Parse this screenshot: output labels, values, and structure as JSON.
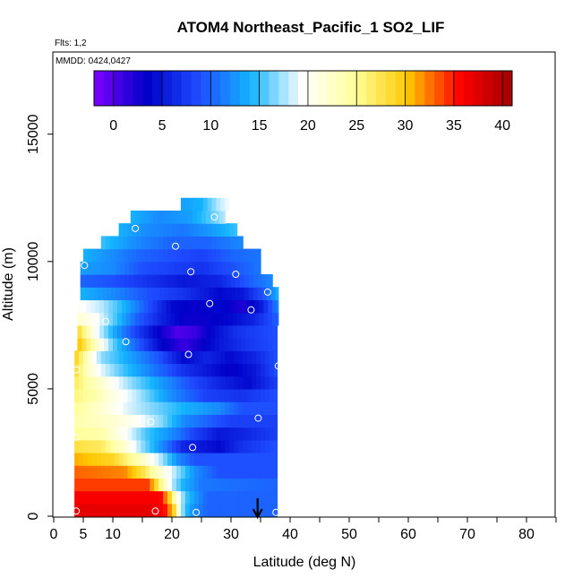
{
  "chart_data": {
    "type": "heatmap",
    "title": "ATOM4 Northeast_Pacific_1 SO2_LIF",
    "flights_label": "Flts: 1,2",
    "dates_label": "MMDD: 0424,0427",
    "xlabel": "Latitude (deg N)",
    "ylabel": "Altitude (m)",
    "xlim": [
      0,
      85
    ],
    "ylim": [
      0,
      17500
    ],
    "x_ticks": [
      "0",
      "5",
      "10",
      "20",
      "30",
      "40",
      "50",
      "60",
      "70",
      "80"
    ],
    "y_ticks": [
      "0",
      "5000",
      "10000",
      "15000"
    ],
    "colorbar": {
      "min": -2,
      "max": 41,
      "ticks": [
        "0",
        "5",
        "10",
        "15",
        "20",
        "25",
        "30",
        "35",
        "40"
      ],
      "colors": [
        "#7f00ff",
        "#0000c8",
        "#1e4bff",
        "#14b4ff",
        "#ffffff",
        "#ffff9b",
        "#ffc800",
        "#ff0000",
        "#a00000"
      ]
    },
    "arrow_latitude": 34.5,
    "observations": [
      {
        "lat": 3.8,
        "alt": 200
      },
      {
        "lat": 17.2,
        "alt": 200
      },
      {
        "lat": 24.1,
        "alt": 150
      },
      {
        "lat": 37.6,
        "alt": 150
      },
      {
        "lat": 3.8,
        "alt": 3100
      },
      {
        "lat": 11.2,
        "alt": 3400
      },
      {
        "lat": 16.4,
        "alt": 3700
      },
      {
        "lat": 23.5,
        "alt": 2700
      },
      {
        "lat": 34.6,
        "alt": 3850
      },
      {
        "lat": 3.8,
        "alt": 5750
      },
      {
        "lat": 38.0,
        "alt": 5900
      },
      {
        "lat": 22.8,
        "alt": 6350
      },
      {
        "lat": 12.2,
        "alt": 6850
      },
      {
        "lat": 8.8,
        "alt": 7650
      },
      {
        "lat": 33.4,
        "alt": 8100
      },
      {
        "lat": 26.4,
        "alt": 8350
      },
      {
        "lat": 36.2,
        "alt": 8800
      },
      {
        "lat": 5.2,
        "alt": 9850
      },
      {
        "lat": 23.2,
        "alt": 9600
      },
      {
        "lat": 30.8,
        "alt": 9500
      },
      {
        "lat": 20.6,
        "alt": 10600
      },
      {
        "lat": 13.8,
        "alt": 11300
      },
      {
        "lat": 27.2,
        "alt": 11750
      }
    ],
    "grid_lat_step": 0.75,
    "grid_alt_step": 500,
    "profile": [
      {
        "alt": 0,
        "lat_min": 3.5,
        "lat_max": 37.8,
        "values": [
          [
            3.5,
            37
          ],
          [
            17,
            37
          ],
          [
            19,
            35
          ],
          [
            20.5,
            28
          ],
          [
            21.5,
            18
          ],
          [
            23,
            13
          ],
          [
            26,
            10
          ],
          [
            37.8,
            10
          ]
        ]
      },
      {
        "alt": 500,
        "lat_min": 3.5,
        "lat_max": 37.8,
        "values": [
          [
            3.5,
            36
          ],
          [
            18,
            36
          ],
          [
            19.5,
            30
          ],
          [
            21,
            20
          ],
          [
            22.5,
            15
          ],
          [
            26,
            10
          ],
          [
            37.8,
            10
          ]
        ]
      },
      {
        "alt": 1000,
        "lat_min": 3.5,
        "lat_max": 37.8,
        "values": [
          [
            3.5,
            34
          ],
          [
            16,
            34
          ],
          [
            18,
            26
          ],
          [
            20,
            18
          ],
          [
            22,
            14
          ],
          [
            25,
            11
          ],
          [
            37.8,
            10
          ]
        ]
      },
      {
        "alt": 1500,
        "lat_min": 3.5,
        "lat_max": 37.8,
        "values": [
          [
            3.5,
            33
          ],
          [
            12,
            32
          ],
          [
            15,
            28
          ],
          [
            18,
            22
          ],
          [
            21,
            17
          ],
          [
            24,
            12
          ],
          [
            28,
            9
          ],
          [
            37.8,
            9
          ]
        ]
      },
      {
        "alt": 2000,
        "lat_min": 3.5,
        "lat_max": 37.8,
        "values": [
          [
            3.5,
            31
          ],
          [
            10,
            29
          ],
          [
            14,
            24
          ],
          [
            18,
            18
          ],
          [
            21,
            12
          ],
          [
            24,
            9
          ],
          [
            37.8,
            9
          ]
        ]
      },
      {
        "alt": 2500,
        "lat_min": 3.5,
        "lat_max": 37.8,
        "values": [
          [
            3.5,
            28
          ],
          [
            8,
            27
          ],
          [
            12,
            22
          ],
          [
            15,
            17
          ],
          [
            19,
            11
          ],
          [
            22,
            6
          ],
          [
            28,
            4
          ],
          [
            32,
            7
          ],
          [
            37.8,
            9
          ]
        ]
      },
      {
        "alt": 3000,
        "lat_min": 3.5,
        "lat_max": 37.8,
        "values": [
          [
            3.5,
            25
          ],
          [
            8,
            24
          ],
          [
            12,
            20
          ],
          [
            16,
            15
          ],
          [
            20,
            12
          ],
          [
            24,
            8
          ],
          [
            28,
            5
          ],
          [
            32,
            6
          ],
          [
            37.8,
            8
          ]
        ]
      },
      {
        "alt": 3500,
        "lat_min": 3.5,
        "lat_max": 37.8,
        "values": [
          [
            3.5,
            24
          ],
          [
            10,
            22
          ],
          [
            14,
            20
          ],
          [
            18,
            17
          ],
          [
            22,
            12
          ],
          [
            26,
            10
          ],
          [
            30,
            8
          ],
          [
            37.8,
            8
          ]
        ]
      },
      {
        "alt": 4000,
        "lat_min": 3.5,
        "lat_max": 37.8,
        "values": [
          [
            3.5,
            25
          ],
          [
            8,
            22
          ],
          [
            12,
            19
          ],
          [
            16,
            17
          ],
          [
            22,
            14
          ],
          [
            28,
            12
          ],
          [
            32,
            9
          ],
          [
            37.8,
            9
          ]
        ]
      },
      {
        "alt": 4500,
        "lat_min": 3.5,
        "lat_max": 37.8,
        "values": [
          [
            3.5,
            26
          ],
          [
            7,
            24
          ],
          [
            10,
            21
          ],
          [
            14,
            18
          ],
          [
            20,
            12
          ],
          [
            26,
            8
          ],
          [
            32,
            7
          ],
          [
            37.8,
            9
          ]
        ]
      },
      {
        "alt": 5000,
        "lat_min": 3.5,
        "lat_max": 37.8,
        "values": [
          [
            3.5,
            27
          ],
          [
            6,
            24
          ],
          [
            9,
            21
          ],
          [
            13,
            17
          ],
          [
            18,
            13
          ],
          [
            23,
            9
          ],
          [
            28,
            6
          ],
          [
            33,
            4
          ],
          [
            37.8,
            8
          ]
        ]
      },
      {
        "alt": 5500,
        "lat_min": 3.5,
        "lat_max": 37.8,
        "values": [
          [
            3.5,
            29
          ],
          [
            5.5,
            23
          ],
          [
            8,
            19
          ],
          [
            12,
            15
          ],
          [
            17,
            11
          ],
          [
            22,
            7
          ],
          [
            26,
            5
          ],
          [
            30,
            3
          ],
          [
            34,
            5
          ],
          [
            37.8,
            9
          ]
        ]
      },
      {
        "alt": 6000,
        "lat_min": 3.5,
        "lat_max": 37.8,
        "values": [
          [
            3.5,
            30
          ],
          [
            6,
            22
          ],
          [
            8,
            17
          ],
          [
            12,
            14
          ],
          [
            18,
            9
          ],
          [
            22,
            4
          ],
          [
            26,
            6
          ],
          [
            30,
            4
          ],
          [
            34,
            6
          ],
          [
            37.8,
            9
          ]
        ]
      },
      {
        "alt": 6500,
        "lat_min": 4,
        "lat_max": 37.8,
        "values": [
          [
            4,
            31
          ],
          [
            7,
            23
          ],
          [
            10,
            16
          ],
          [
            14,
            10
          ],
          [
            18,
            4
          ],
          [
            22,
            1
          ],
          [
            25,
            3
          ],
          [
            28,
            5
          ],
          [
            32,
            7
          ],
          [
            37.8,
            9
          ]
        ]
      },
      {
        "alt": 7000,
        "lat_min": 4,
        "lat_max": 37.8,
        "values": [
          [
            4,
            29
          ],
          [
            7,
            20
          ],
          [
            10,
            14
          ],
          [
            14,
            8
          ],
          [
            18,
            3
          ],
          [
            21,
            0
          ],
          [
            24,
            1
          ],
          [
            27,
            4
          ],
          [
            31,
            7
          ],
          [
            37.8,
            9
          ]
        ]
      },
      {
        "alt": 7500,
        "lat_min": 4,
        "lat_max": 38,
        "values": [
          [
            4,
            22
          ],
          [
            7,
            20
          ],
          [
            10,
            16
          ],
          [
            14,
            10
          ],
          [
            18,
            6
          ],
          [
            22,
            3
          ],
          [
            26,
            3
          ],
          [
            30,
            4
          ],
          [
            34,
            6
          ],
          [
            38,
            10
          ]
        ]
      },
      {
        "alt": 8000,
        "lat_min": 4,
        "lat_max": 38,
        "values": [
          [
            4,
            20
          ],
          [
            8,
            18
          ],
          [
            12,
            14
          ],
          [
            16,
            9
          ],
          [
            20,
            4
          ],
          [
            24,
            3
          ],
          [
            28,
            4
          ],
          [
            32,
            2
          ],
          [
            35,
            5
          ],
          [
            38,
            12
          ]
        ]
      },
      {
        "alt": 8500,
        "lat_min": 4.5,
        "lat_max": 38,
        "values": [
          [
            4.5,
            14
          ],
          [
            10,
            12
          ],
          [
            16,
            9
          ],
          [
            22,
            7
          ],
          [
            28,
            4
          ],
          [
            32,
            5
          ],
          [
            36,
            10
          ],
          [
            38,
            14
          ]
        ]
      },
      {
        "alt": 9000,
        "lat_min": 4.5,
        "lat_max": 37,
        "values": [
          [
            4.5,
            10
          ],
          [
            10,
            9
          ],
          [
            16,
            7
          ],
          [
            22,
            5
          ],
          [
            28,
            6
          ],
          [
            32,
            9
          ],
          [
            37,
            12
          ]
        ]
      },
      {
        "alt": 9500,
        "lat_min": 4.5,
        "lat_max": 35,
        "values": [
          [
            4.5,
            13
          ],
          [
            10,
            12
          ],
          [
            15,
            9
          ],
          [
            20,
            8
          ],
          [
            25,
            7
          ],
          [
            30,
            9
          ],
          [
            35,
            11
          ]
        ]
      },
      {
        "alt": 10000,
        "lat_min": 5,
        "lat_max": 35,
        "values": [
          [
            5,
            14
          ],
          [
            10,
            12
          ],
          [
            15,
            10
          ],
          [
            20,
            9
          ],
          [
            25,
            8
          ],
          [
            30,
            10
          ],
          [
            35,
            11
          ]
        ]
      },
      {
        "alt": 10500,
        "lat_min": 8,
        "lat_max": 32,
        "values": [
          [
            8,
            15
          ],
          [
            14,
            12
          ],
          [
            20,
            10
          ],
          [
            26,
            10
          ],
          [
            32,
            12
          ]
        ]
      },
      {
        "alt": 11000,
        "lat_min": 11,
        "lat_max": 31,
        "values": [
          [
            11,
            14
          ],
          [
            16,
            12
          ],
          [
            22,
            11
          ],
          [
            27,
            13
          ],
          [
            31,
            15
          ]
        ]
      },
      {
        "alt": 11500,
        "lat_min": 13,
        "lat_max": 29,
        "values": [
          [
            13,
            14
          ],
          [
            18,
            12
          ],
          [
            23,
            13
          ],
          [
            27,
            16
          ],
          [
            29,
            18
          ]
        ]
      },
      {
        "alt": 12000,
        "lat_min": 21.5,
        "lat_max": 30.5,
        "values": [
          [
            21.5,
            13
          ],
          [
            25,
            14
          ],
          [
            28,
            18
          ],
          [
            30.5,
            20
          ]
        ]
      }
    ]
  }
}
